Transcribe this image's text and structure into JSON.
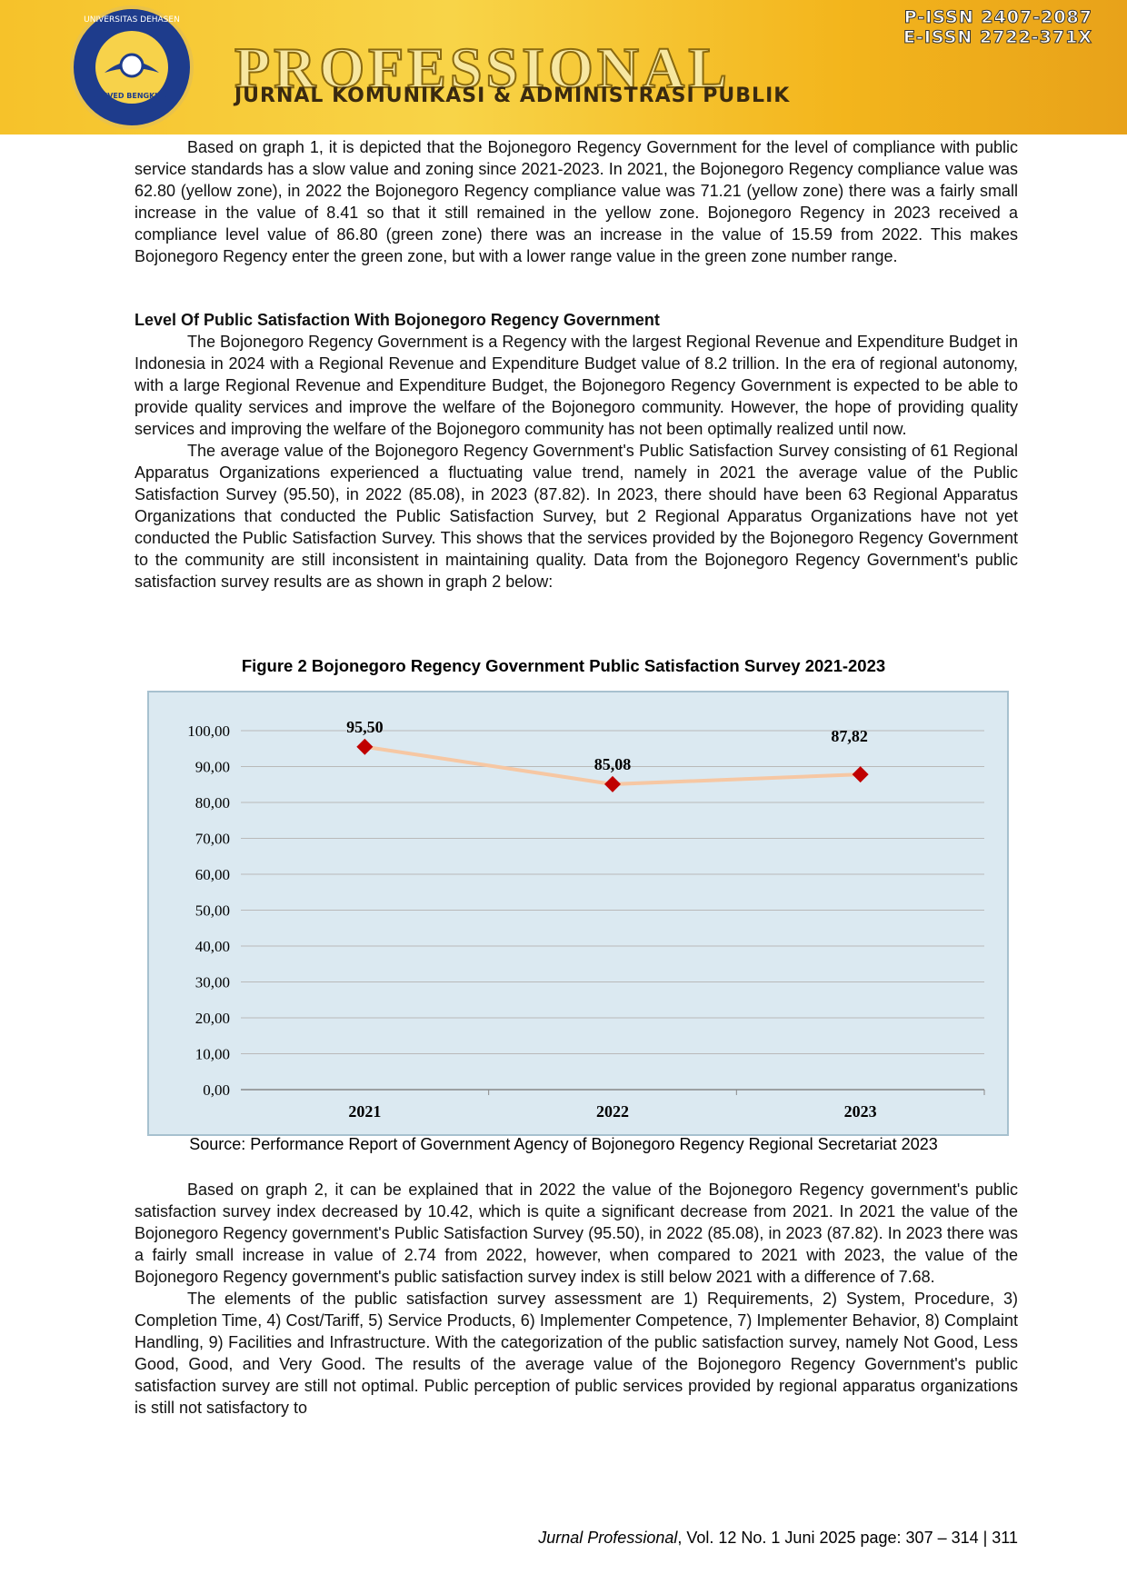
{
  "header": {
    "issn_print": "P-ISSN 2407-2087",
    "issn_online": "E-ISSN 2722-371X",
    "journal_title": "PROFESSIONAL",
    "journal_subtitle": "JURNAL KOMUNIKASI & ADMINISTRASI PUBLIK",
    "logo_top": "UNIVERSITAS DEHASEN",
    "logo_bottom": "UNIVED BENGKULU"
  },
  "paragraphs_before": [
    "Based on graph 1, it is depicted that the Bojonegoro Regency Government for the level of compliance with public service standards has a slow value and zoning since 2021-2023. In 2021, the Bojonegoro Regency compliance value was 62.80 (yellow zone), in 2022 the Bojonegoro Regency compliance value was 71.21 (yellow zone) there was a fairly small increase in the value of 8.41 so that it still remained in the yellow zone. Bojonegoro Regency in 2023 received a compliance level value of 86.80 (green zone) there was an increase in the value of 15.59 from 2022. This makes Bojonegoro Regency enter the green zone, but with a lower range value in the green zone number range."
  ],
  "section_heading": "Level Of Public Satisfaction With Bojonegoro Regency Government",
  "section_paragraphs": [
    "The Bojonegoro Regency Government is a Regency with the largest Regional Revenue and Expenditure Budget in Indonesia in 2024 with a Regional Revenue and Expenditure Budget value of 8.2 trillion. In the era of regional autonomy, with a large Regional Revenue and Expenditure Budget, the Bojonegoro Regency Government is expected to be able to provide quality services and improve the welfare of the Bojonegoro community. However, the hope of providing quality services and improving the welfare of the Bojonegoro community has not been optimally realized until now.",
    "The average value of the Bojonegoro Regency Government's Public Satisfaction Survey consisting of 61 Regional Apparatus Organizations experienced a fluctuating value trend, namely in 2021 the average value of the Public Satisfaction Survey (95.50), in 2022 (85.08), in 2023 (87.82). In 2023, there should have been 63 Regional Apparatus Organizations that conducted the Public Satisfaction Survey, but 2 Regional Apparatus Organizations have not yet conducted the Public Satisfaction Survey. This shows that the services provided by the Bojonegoro Regency Government to the community are still inconsistent in maintaining quality. Data from the Bojonegoro Regency Government's public satisfaction survey results are as shown in graph 2 below:"
  ],
  "figure_caption": "Figure 2 Bojonegoro Regency Government Public Satisfaction Survey 2021-2023",
  "chart_data": {
    "type": "line",
    "categories": [
      "2021",
      "2022",
      "2023"
    ],
    "values": [
      95.5,
      85.08,
      87.82
    ],
    "value_labels": [
      "95,50",
      "85,08",
      "87,82"
    ],
    "line_color": "#f6c7a3",
    "marker_color": "#c00000",
    "ylim": [
      0,
      100
    ],
    "yticks": [
      {
        "value": 0,
        "label": "0,00"
      },
      {
        "value": 10,
        "label": "10,00"
      },
      {
        "value": 20,
        "label": "20,00"
      },
      {
        "value": 30,
        "label": "30,00"
      },
      {
        "value": 40,
        "label": "40,00"
      },
      {
        "value": 50,
        "label": "50,00"
      },
      {
        "value": 60,
        "label": "60,00"
      },
      {
        "value": 70,
        "label": "70,00"
      },
      {
        "value": 80,
        "label": "80,00"
      },
      {
        "value": 90,
        "label": "90,00"
      },
      {
        "value": 100,
        "label": "100,00"
      }
    ],
    "grid": true
  },
  "figure_source": "Source: Performance Report of Government Agency of Bojonegoro Regency Regional Secretariat 2023",
  "paragraphs_after": [
    "Based on graph 2, it can be explained that in 2022 the value of the Bojonegoro Regency government's public satisfaction survey index decreased by 10.42, which is quite a significant decrease from 2021. In 2021 the value of the Bojonegoro Regency government's Public Satisfaction Survey (95.50), in 2022 (85.08), in 2023 (87.82). In 2023 there was a fairly small increase in value of 2.74 from 2022, however, when compared to 2021 with 2023, the value of the Bojonegoro Regency government's public satisfaction survey index is still below 2021 with a difference of 7.68.",
    "The elements of the public satisfaction survey assessment are 1) Requirements, 2) System, Procedure, 3) Completion Time, 4) Cost/Tariff, 5) Service Products, 6) Implementer Competence, 7) Implementer Behavior, 8) Complaint Handling, 9) Facilities and Infrastructure. With the categorization of the public satisfaction survey, namely Not Good, Less Good, Good, and Very Good. The results of the average value of the Bojonegoro Regency Government's public satisfaction survey are still not optimal. Public perception of public services provided by regional apparatus organizations is still not satisfactory to"
  ],
  "footer": {
    "journal_name": "Jurnal Professional",
    "citation": ", Vol. 12 No. 1 Juni  2025 page: 307 – 314 | 311"
  }
}
